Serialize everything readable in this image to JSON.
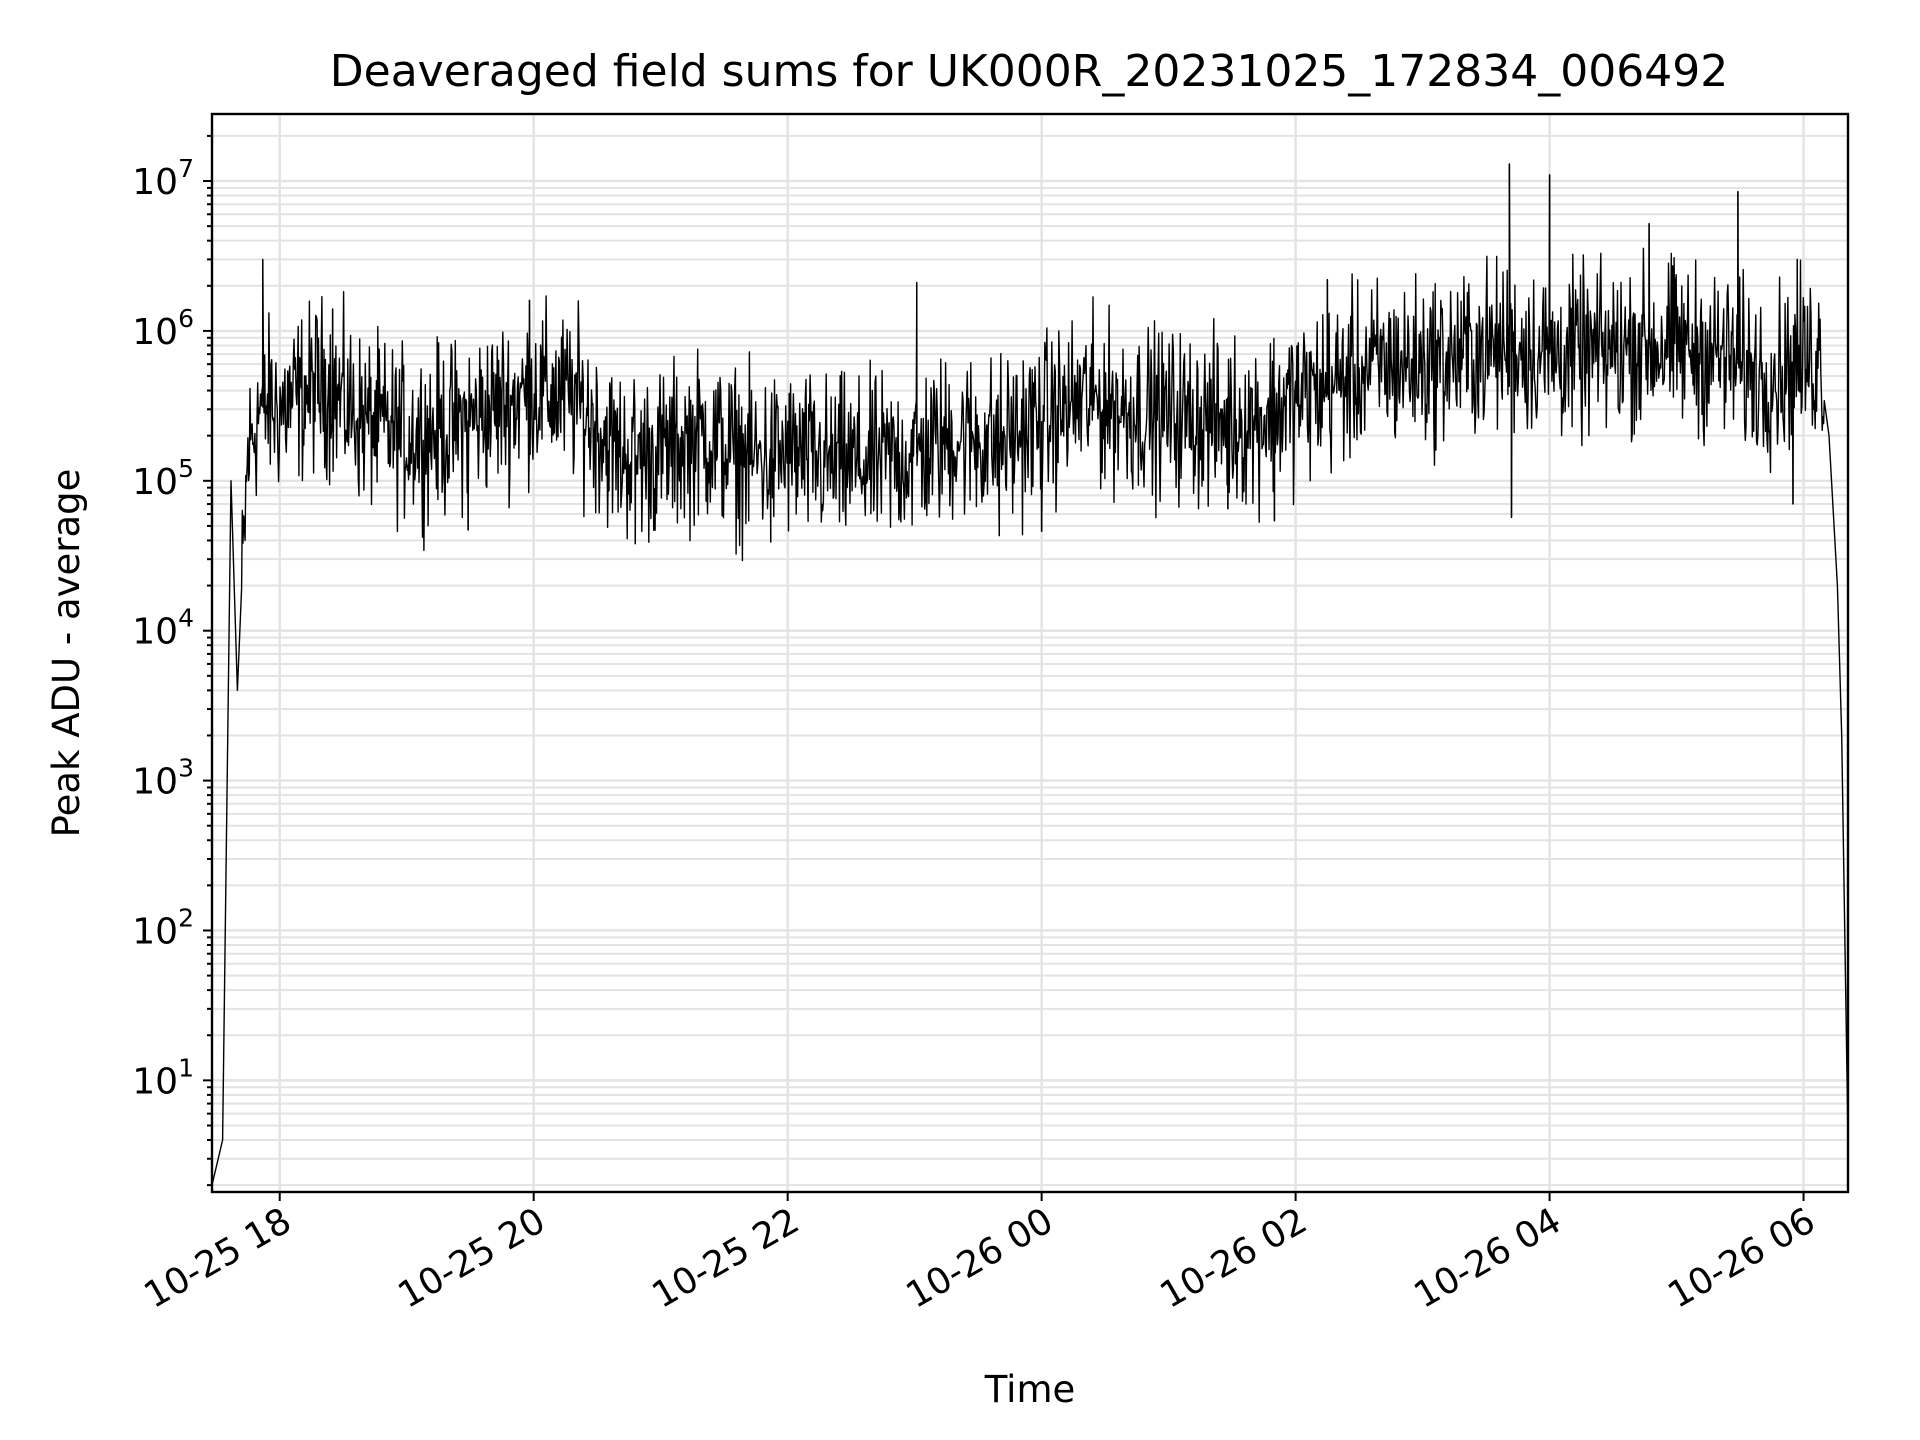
{
  "chart_data": {
    "type": "line",
    "title": "Deaveraged field sums for UK000R_20231025_172834_006492",
    "xlabel": "Time",
    "ylabel": "Peak ADU - average",
    "yscale": "log",
    "xlim": [
      "2023-10-25 17:28",
      "2023-10-26 06:21"
    ],
    "ylim": [
      1.8,
      28000000
    ],
    "grid": true,
    "x_ticks": [
      "10-25 18",
      "10-25 20",
      "10-25 22",
      "10-26 00",
      "10-26 02",
      "10-26 04",
      "10-26 06"
    ],
    "y_ticks": [
      {
        "base": "10",
        "exp": "1",
        "value": 10
      },
      {
        "base": "10",
        "exp": "2",
        "value": 100
      },
      {
        "base": "10",
        "exp": "3",
        "value": 1000
      },
      {
        "base": "10",
        "exp": "4",
        "value": 10000
      },
      {
        "base": "10",
        "exp": "5",
        "value": 100000
      },
      {
        "base": "10",
        "exp": "6",
        "value": 1000000
      },
      {
        "base": "10",
        "exp": "7",
        "value": 10000000
      }
    ],
    "line_color": "#000000",
    "series": [
      {
        "x": [
          "2023-10-25 17:28",
          "2023-10-25 17:33",
          "2023-10-25 17:37",
          "2023-10-25 17:40",
          "2023-10-25 17:45",
          "2023-10-25 17:50",
          "2023-10-25 17:55",
          "2023-10-25 18:00",
          "2023-10-25 18:20",
          "2023-10-25 18:40",
          "2023-10-25 19:00",
          "2023-10-25 19:20",
          "2023-10-25 19:40",
          "2023-10-25 20:00",
          "2023-10-25 20:20",
          "2023-10-25 20:40",
          "2023-10-25 21:00",
          "2023-10-25 21:20",
          "2023-10-25 21:40",
          "2023-10-25 22:00",
          "2023-10-25 22:20",
          "2023-10-25 22:40",
          "2023-10-25 23:00",
          "2023-10-25 23:20",
          "2023-10-25 23:40",
          "2023-10-26 00:00",
          "2023-10-26 00:20",
          "2023-10-26 00:40",
          "2023-10-26 01:00",
          "2023-10-26 01:20",
          "2023-10-26 01:40",
          "2023-10-26 02:00",
          "2023-10-26 02:20",
          "2023-10-26 02:40",
          "2023-10-26 03:00",
          "2023-10-26 03:20",
          "2023-10-26 03:40",
          "2023-10-26 04:00",
          "2023-10-26 04:20",
          "2023-10-26 04:40",
          "2023-10-26 05:00",
          "2023-10-26 05:20",
          "2023-10-26 05:40",
          "2023-10-26 06:00",
          "2023-10-26 06:08",
          "2023-10-26 06:12",
          "2023-10-26 06:16",
          "2023-10-26 06:18",
          "2023-10-26 06:21"
        ],
        "y": [
          2,
          4,
          100000,
          4000,
          150000,
          300000,
          320000,
          300000,
          450000,
          250000,
          200000,
          220000,
          300000,
          400000,
          350000,
          150000,
          150000,
          200000,
          140000,
          150000,
          130000,
          130000,
          150000,
          200000,
          180000,
          250000,
          350000,
          300000,
          280000,
          250000,
          250000,
          350000,
          450000,
          600000,
          600000,
          700000,
          800000,
          700000,
          700000,
          800000,
          800000,
          700000,
          500000,
          600000,
          700000,
          200000,
          20000,
          2000,
          4
        ]
      }
    ],
    "spikes": [
      {
        "x": "2023-10-25 17:52",
        "y": 3000000
      },
      {
        "x": "2023-10-25 18:25",
        "y": 1400000
      },
      {
        "x": "2023-10-25 19:58",
        "y": 1600000
      },
      {
        "x": "2023-10-25 23:01",
        "y": 2100000
      },
      {
        "x": "2023-10-26 02:15",
        "y": 2200000
      },
      {
        "x": "2023-10-26 03:41",
        "y": 13000000
      },
      {
        "x": "2023-10-26 04:00",
        "y": 11000000
      },
      {
        "x": "2023-10-26 04:47",
        "y": 5200000
      },
      {
        "x": "2023-10-26 05:29",
        "y": 8500000
      },
      {
        "x": "2023-10-26 05:57",
        "y": 3000000
      }
    ],
    "dips": [
      {
        "x": "2023-10-25 19:29",
        "y": 47000
      },
      {
        "x": "2023-10-25 20:48",
        "y": 38000
      },
      {
        "x": "2023-10-25 21:52",
        "y": 39000
      },
      {
        "x": "2023-10-25 23:40",
        "y": 43000
      },
      {
        "x": "2023-10-26 00:00",
        "y": 46000
      },
      {
        "x": "2023-10-26 01:28",
        "y": 65000
      },
      {
        "x": "2023-10-26 01:50",
        "y": 54000
      },
      {
        "x": "2023-10-26 03:42",
        "y": 57000
      },
      {
        "x": "2023-10-26 05:55",
        "y": 70000
      }
    ]
  }
}
